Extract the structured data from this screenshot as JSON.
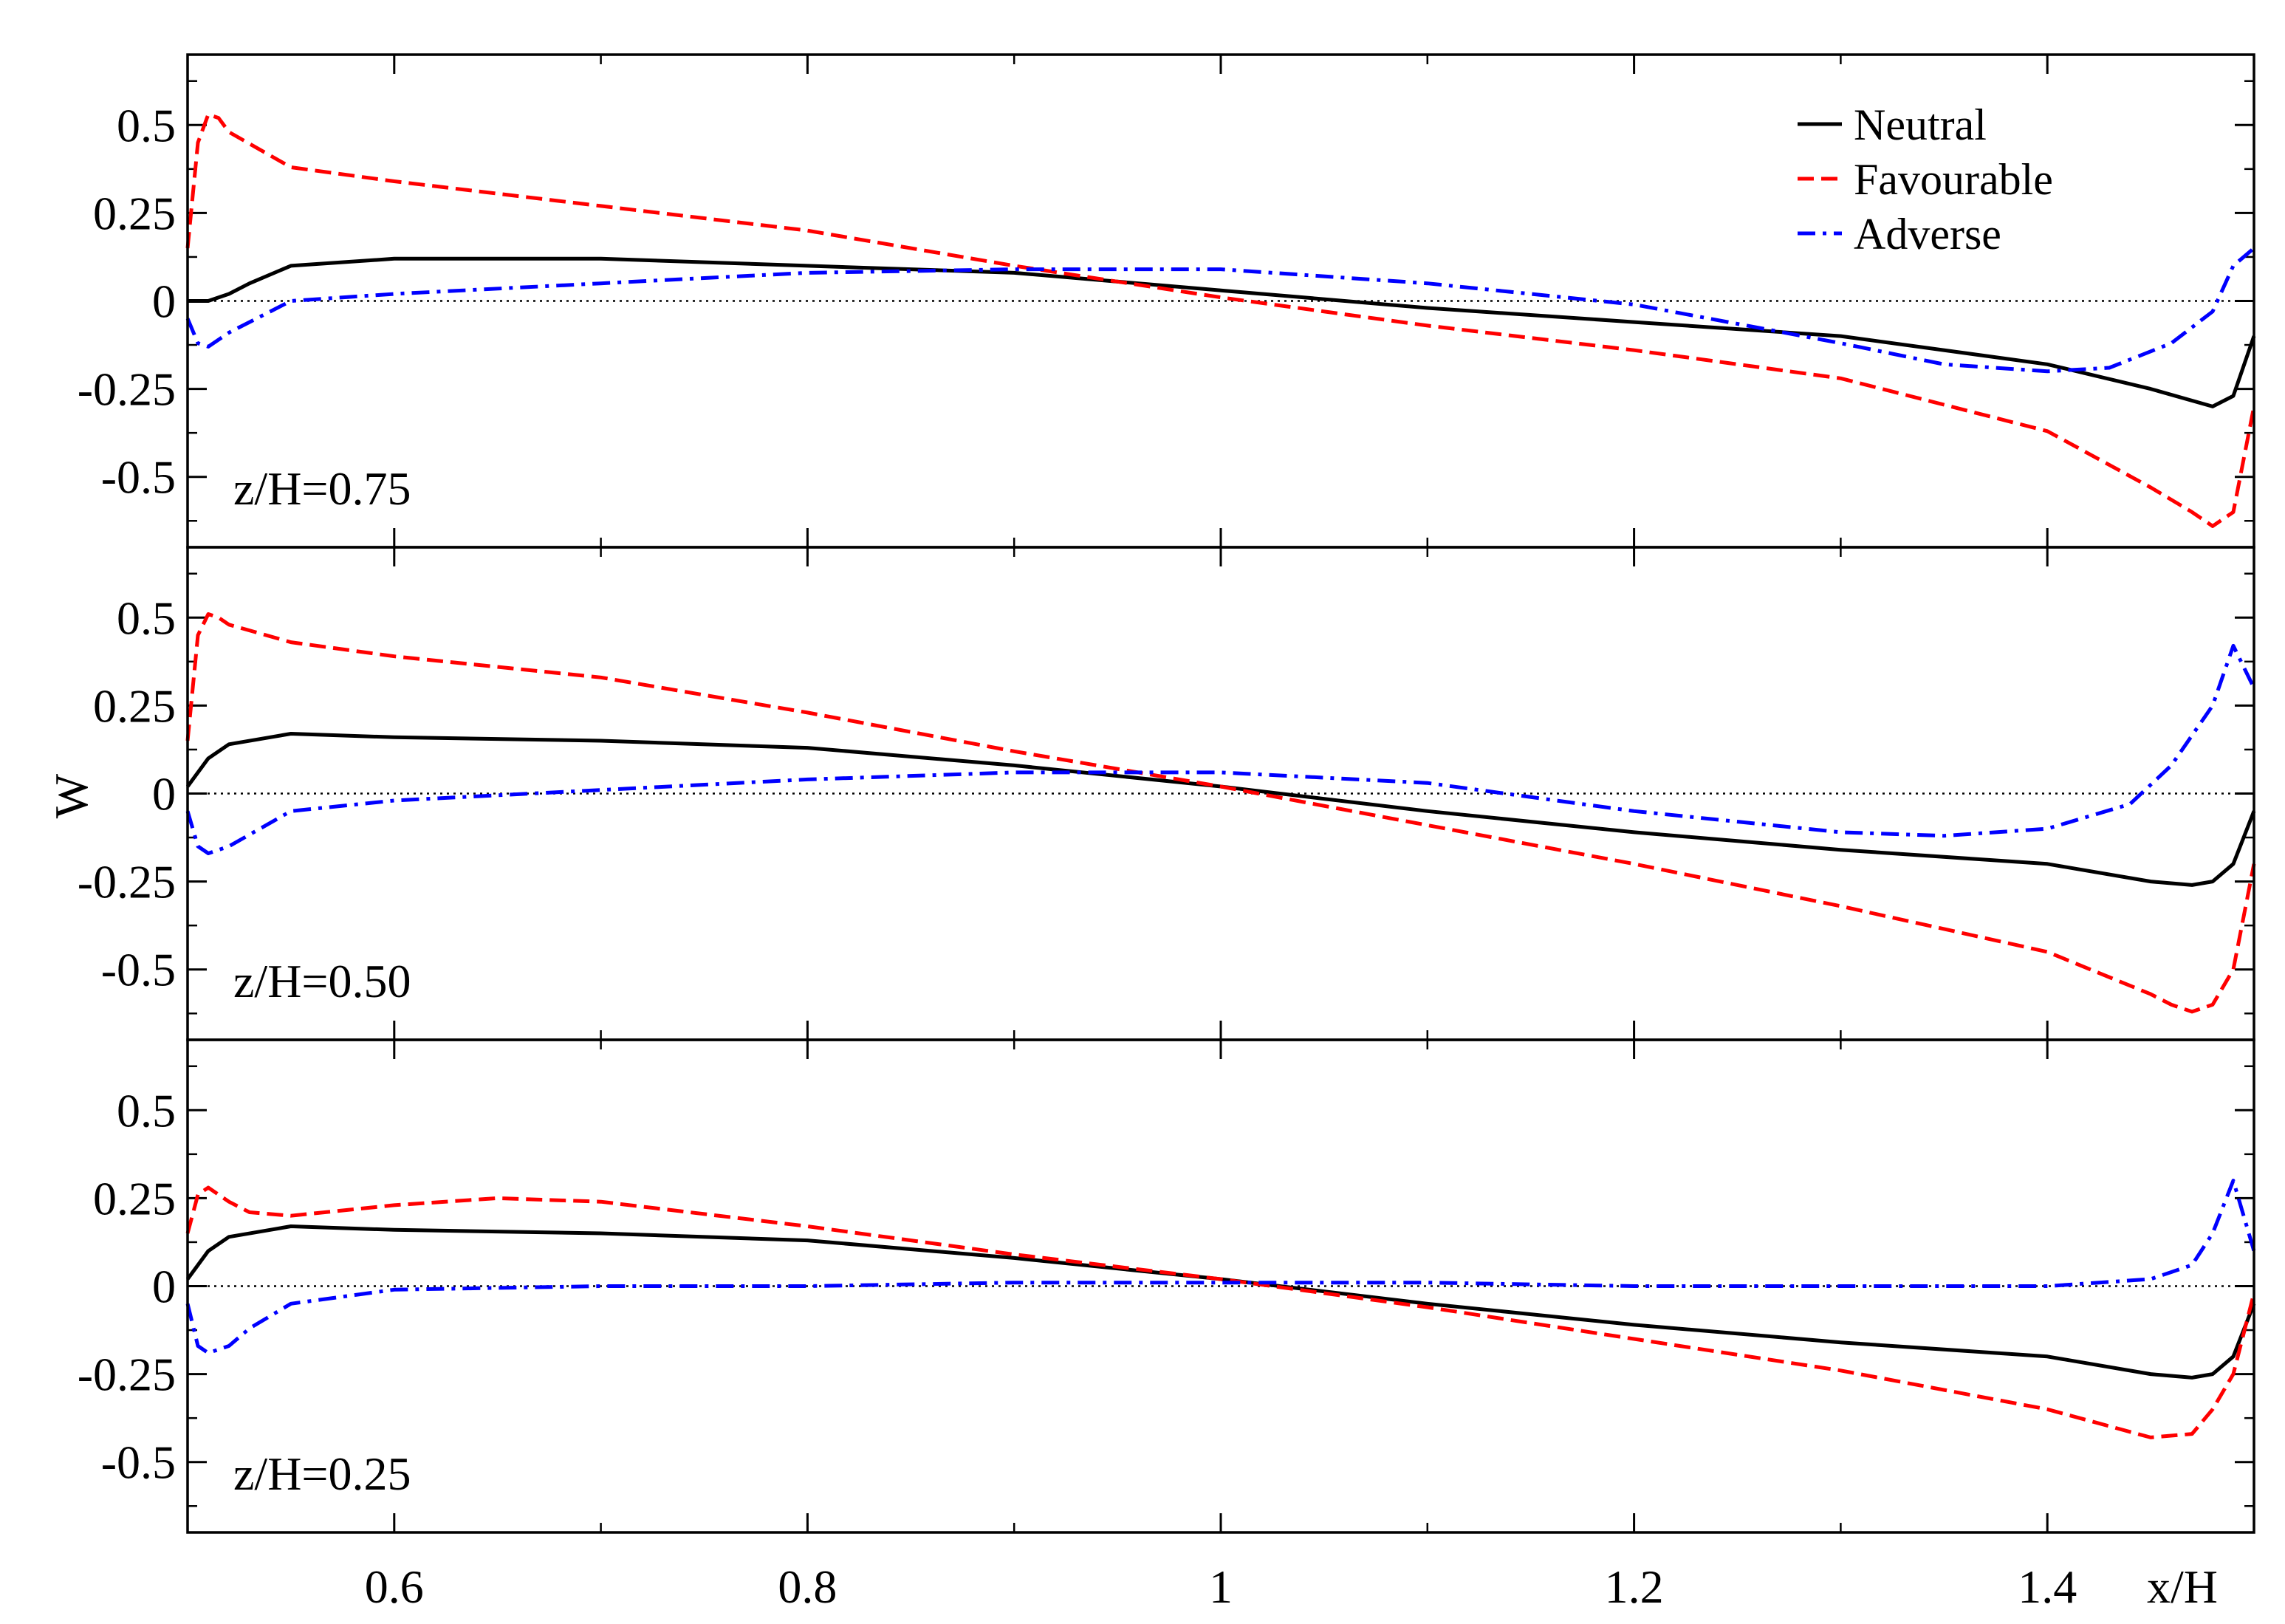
{
  "chart_data": {
    "type": "line",
    "xlabel": "x/H",
    "ylabel": "W",
    "xlim": [
      0.5,
      1.5
    ],
    "ylim": [
      -0.7,
      0.7
    ],
    "xticks": [
      0.6,
      0.8,
      1.0,
      1.2,
      1.4
    ],
    "xtick_labels": [
      "0.6",
      "0.8",
      "1",
      "1.2",
      "1.4"
    ],
    "yticks": [
      -0.5,
      -0.25,
      0,
      0.25,
      0.5
    ],
    "ytick_labels": [
      "-0.5",
      "-0.25",
      "0",
      "0.25",
      "0.5"
    ],
    "legend": {
      "placement": "top-right",
      "entries": [
        {
          "name": "Neutral",
          "color": "#000000",
          "style": "solid"
        },
        {
          "name": "Favourable",
          "color": "#ff0000",
          "style": "dashed"
        },
        {
          "name": "Adverse",
          "color": "#0000ff",
          "style": "dashdot"
        }
      ]
    },
    "zero_line": "dotted",
    "panels": [
      {
        "label": "z/H=0.75",
        "series": [
          {
            "name": "Neutral",
            "x": [
              0.5,
              0.51,
              0.52,
              0.53,
              0.55,
              0.6,
              0.7,
              0.8,
              0.9,
              1.0,
              1.1,
              1.2,
              1.3,
              1.4,
              1.45,
              1.48,
              1.49,
              1.5
            ],
            "y": [
              0.0,
              0.0,
              0.02,
              0.05,
              0.1,
              0.12,
              0.12,
              0.1,
              0.08,
              0.03,
              -0.02,
              -0.06,
              -0.1,
              -0.18,
              -0.25,
              -0.3,
              -0.27,
              -0.1
            ]
          },
          {
            "name": "Favourable",
            "x": [
              0.5,
              0.505,
              0.51,
              0.515,
              0.52,
              0.55,
              0.6,
              0.7,
              0.8,
              0.9,
              1.0,
              1.1,
              1.2,
              1.3,
              1.4,
              1.45,
              1.47,
              1.48,
              1.49,
              1.5
            ],
            "y": [
              0.15,
              0.45,
              0.53,
              0.52,
              0.48,
              0.38,
              0.34,
              0.27,
              0.2,
              0.1,
              0.01,
              -0.07,
              -0.14,
              -0.22,
              -0.37,
              -0.53,
              -0.6,
              -0.64,
              -0.6,
              -0.3
            ]
          },
          {
            "name": "Adverse",
            "x": [
              0.5,
              0.505,
              0.51,
              0.52,
              0.55,
              0.6,
              0.7,
              0.8,
              0.9,
              1.0,
              1.1,
              1.15,
              1.2,
              1.3,
              1.35,
              1.4,
              1.43,
              1.46,
              1.48,
              1.49,
              1.5
            ],
            "y": [
              -0.05,
              -0.12,
              -0.13,
              -0.09,
              0.0,
              0.02,
              0.05,
              0.08,
              0.09,
              0.09,
              0.05,
              0.02,
              -0.01,
              -0.12,
              -0.18,
              -0.2,
              -0.19,
              -0.12,
              -0.03,
              0.1,
              0.15
            ]
          }
        ]
      },
      {
        "label": "z/H=0.50",
        "series": [
          {
            "name": "Neutral",
            "x": [
              0.5,
              0.51,
              0.52,
              0.54,
              0.55,
              0.6,
              0.7,
              0.8,
              0.9,
              1.0,
              1.1,
              1.2,
              1.3,
              1.4,
              1.45,
              1.47,
              1.48,
              1.49,
              1.5
            ],
            "y": [
              0.02,
              0.1,
              0.14,
              0.16,
              0.17,
              0.16,
              0.15,
              0.13,
              0.08,
              0.02,
              -0.05,
              -0.11,
              -0.16,
              -0.2,
              -0.25,
              -0.26,
              -0.25,
              -0.2,
              -0.05
            ]
          },
          {
            "name": "Favourable",
            "x": [
              0.5,
              0.505,
              0.51,
              0.515,
              0.52,
              0.55,
              0.6,
              0.7,
              0.8,
              0.9,
              1.0,
              1.1,
              1.2,
              1.3,
              1.4,
              1.45,
              1.46,
              1.47,
              1.48,
              1.49,
              1.5
            ],
            "y": [
              0.15,
              0.45,
              0.51,
              0.5,
              0.48,
              0.43,
              0.39,
              0.33,
              0.23,
              0.12,
              0.02,
              -0.09,
              -0.2,
              -0.32,
              -0.45,
              -0.57,
              -0.6,
              -0.62,
              -0.6,
              -0.5,
              -0.2
            ]
          },
          {
            "name": "Adverse",
            "x": [
              0.5,
              0.505,
              0.51,
              0.52,
              0.55,
              0.6,
              0.7,
              0.8,
              0.9,
              1.0,
              1.1,
              1.2,
              1.3,
              1.35,
              1.4,
              1.44,
              1.46,
              1.48,
              1.49,
              1.5
            ],
            "y": [
              -0.05,
              -0.15,
              -0.17,
              -0.15,
              -0.05,
              -0.02,
              0.01,
              0.04,
              0.06,
              0.06,
              0.03,
              -0.05,
              -0.11,
              -0.12,
              -0.1,
              -0.03,
              0.08,
              0.25,
              0.42,
              0.3
            ]
          }
        ]
      },
      {
        "label": "z/H=0.25",
        "series": [
          {
            "name": "Neutral",
            "x": [
              0.5,
              0.51,
              0.52,
              0.54,
              0.55,
              0.6,
              0.7,
              0.8,
              0.9,
              1.0,
              1.1,
              1.2,
              1.3,
              1.4,
              1.45,
              1.47,
              1.48,
              1.49,
              1.5
            ],
            "y": [
              0.02,
              0.1,
              0.14,
              0.16,
              0.17,
              0.16,
              0.15,
              0.13,
              0.08,
              0.02,
              -0.05,
              -0.11,
              -0.16,
              -0.2,
              -0.25,
              -0.26,
              -0.25,
              -0.2,
              -0.05
            ]
          },
          {
            "name": "Favourable",
            "x": [
              0.5,
              0.505,
              0.51,
              0.52,
              0.53,
              0.55,
              0.6,
              0.65,
              0.7,
              0.8,
              0.9,
              1.0,
              1.1,
              1.2,
              1.3,
              1.4,
              1.45,
              1.47,
              1.48,
              1.49,
              1.5
            ],
            "y": [
              0.15,
              0.26,
              0.28,
              0.24,
              0.21,
              0.2,
              0.23,
              0.25,
              0.24,
              0.17,
              0.09,
              0.02,
              -0.06,
              -0.15,
              -0.24,
              -0.35,
              -0.43,
              -0.42,
              -0.35,
              -0.25,
              -0.02
            ]
          },
          {
            "name": "Adverse",
            "x": [
              0.5,
              0.505,
              0.51,
              0.52,
              0.53,
              0.55,
              0.6,
              0.7,
              0.8,
              0.9,
              1.0,
              1.1,
              1.2,
              1.3,
              1.4,
              1.45,
              1.47,
              1.48,
              1.49,
              1.5
            ],
            "y": [
              -0.05,
              -0.17,
              -0.19,
              -0.17,
              -0.12,
              -0.05,
              -0.01,
              0.0,
              0.0,
              0.01,
              0.01,
              0.01,
              0.0,
              0.0,
              0.0,
              0.02,
              0.06,
              0.15,
              0.3,
              0.1
            ]
          }
        ]
      }
    ]
  }
}
